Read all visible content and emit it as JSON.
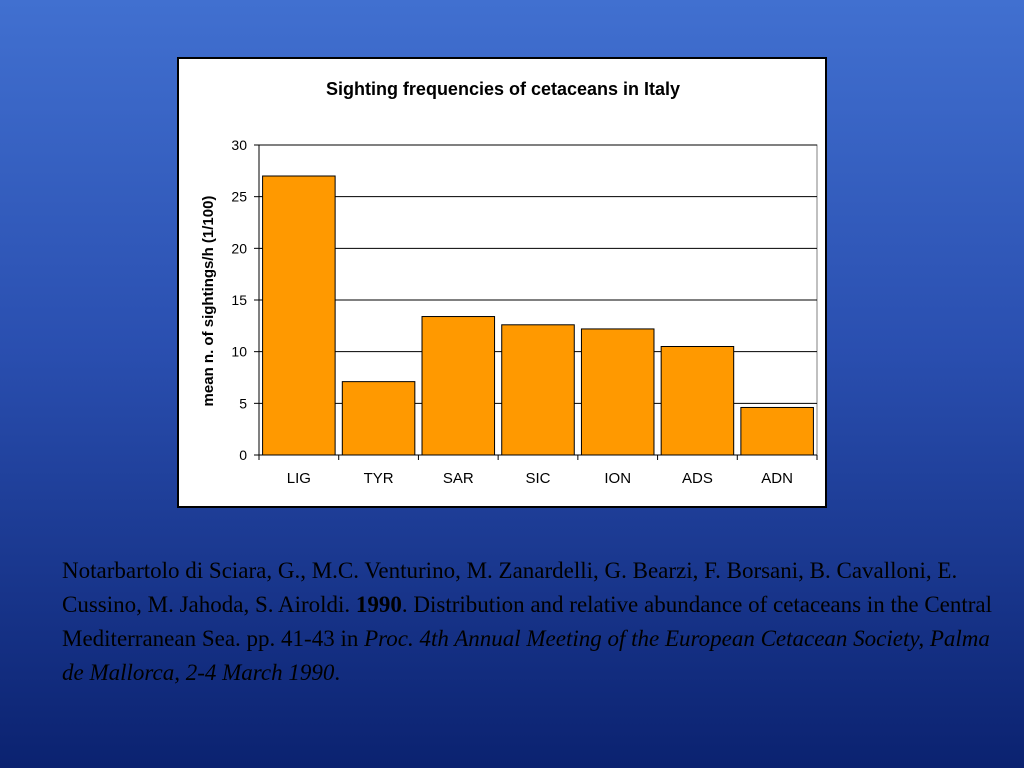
{
  "chart_data": {
    "type": "bar",
    "title": "Sighting frequencies of cetaceans in Italy",
    "xlabel": "",
    "ylabel": "mean n. of sightings/h (1/100)",
    "categories": [
      "LIG",
      "TYR",
      "SAR",
      "SIC",
      "ION",
      "ADS",
      "ADN"
    ],
    "values": [
      27,
      7.1,
      13.4,
      12.6,
      12.2,
      10.5,
      4.6
    ],
    "ylim": [
      0,
      30
    ],
    "yticks": [
      0,
      5,
      10,
      15,
      20,
      25,
      30
    ],
    "grid": true,
    "legend": "none",
    "bar_color": "#ff9900"
  },
  "citation": {
    "authors": "Notarbartolo di Sciara, G., M.C. Venturino, M. Zanardelli, G. Bearzi, F. Borsani, B. Cavalloni, E. Cussino, M. Jahoda, S. Airoldi. ",
    "year": "1990",
    "title": ". Distribution and relative abundance of cetaceans in the Central Mediterranean Sea. pp. 41-43 in ",
    "journal": "Proc. 4th Annual Meeting of the European Cetacean Society, Palma de Mallorca, 2-4 March 1990",
    "end": "."
  },
  "colors": {
    "background_top": "#4170d0",
    "background_bottom": "#0b2270"
  }
}
